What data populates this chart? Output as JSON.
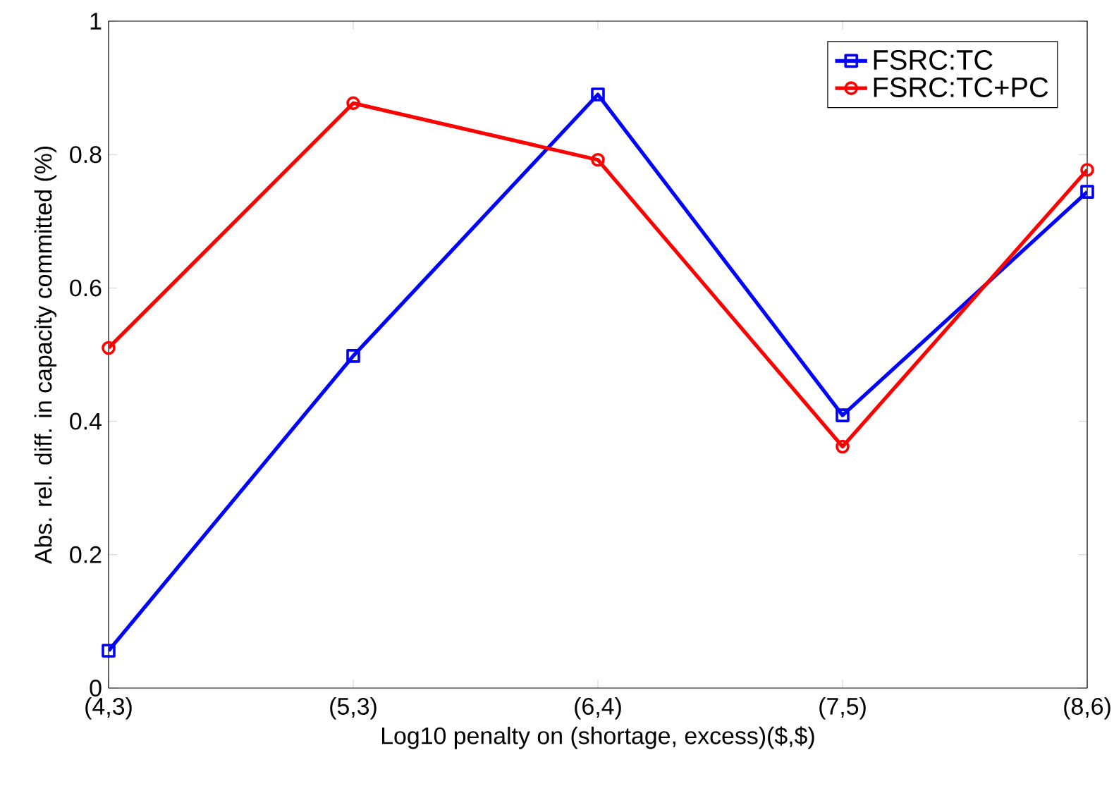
{
  "chart_data": {
    "type": "line",
    "xlabel": "Log10 penalty on (shortage, excess)($,$)",
    "ylabel": "Abs. rel. diff. in capacity committed (%)",
    "categories": [
      "(4,3)",
      "(5,3)",
      "(6,4)",
      "(7,5)",
      "(8,6)"
    ],
    "series": [
      {
        "name": "FSRC:TC",
        "color": "#0000ff",
        "marker": "square",
        "values": [
          0.056,
          0.498,
          0.89,
          0.409,
          0.744
        ]
      },
      {
        "name": "FSRC:TC+PC",
        "color": "#ff0000",
        "marker": "circle",
        "values": [
          0.51,
          0.877,
          0.792,
          0.362,
          0.777
        ]
      }
    ],
    "ylim": [
      0,
      1
    ],
    "yticks": [
      0,
      0.2,
      0.4,
      0.6,
      0.8,
      1
    ],
    "legend": "top right",
    "line_style": "solid",
    "grid": false
  }
}
